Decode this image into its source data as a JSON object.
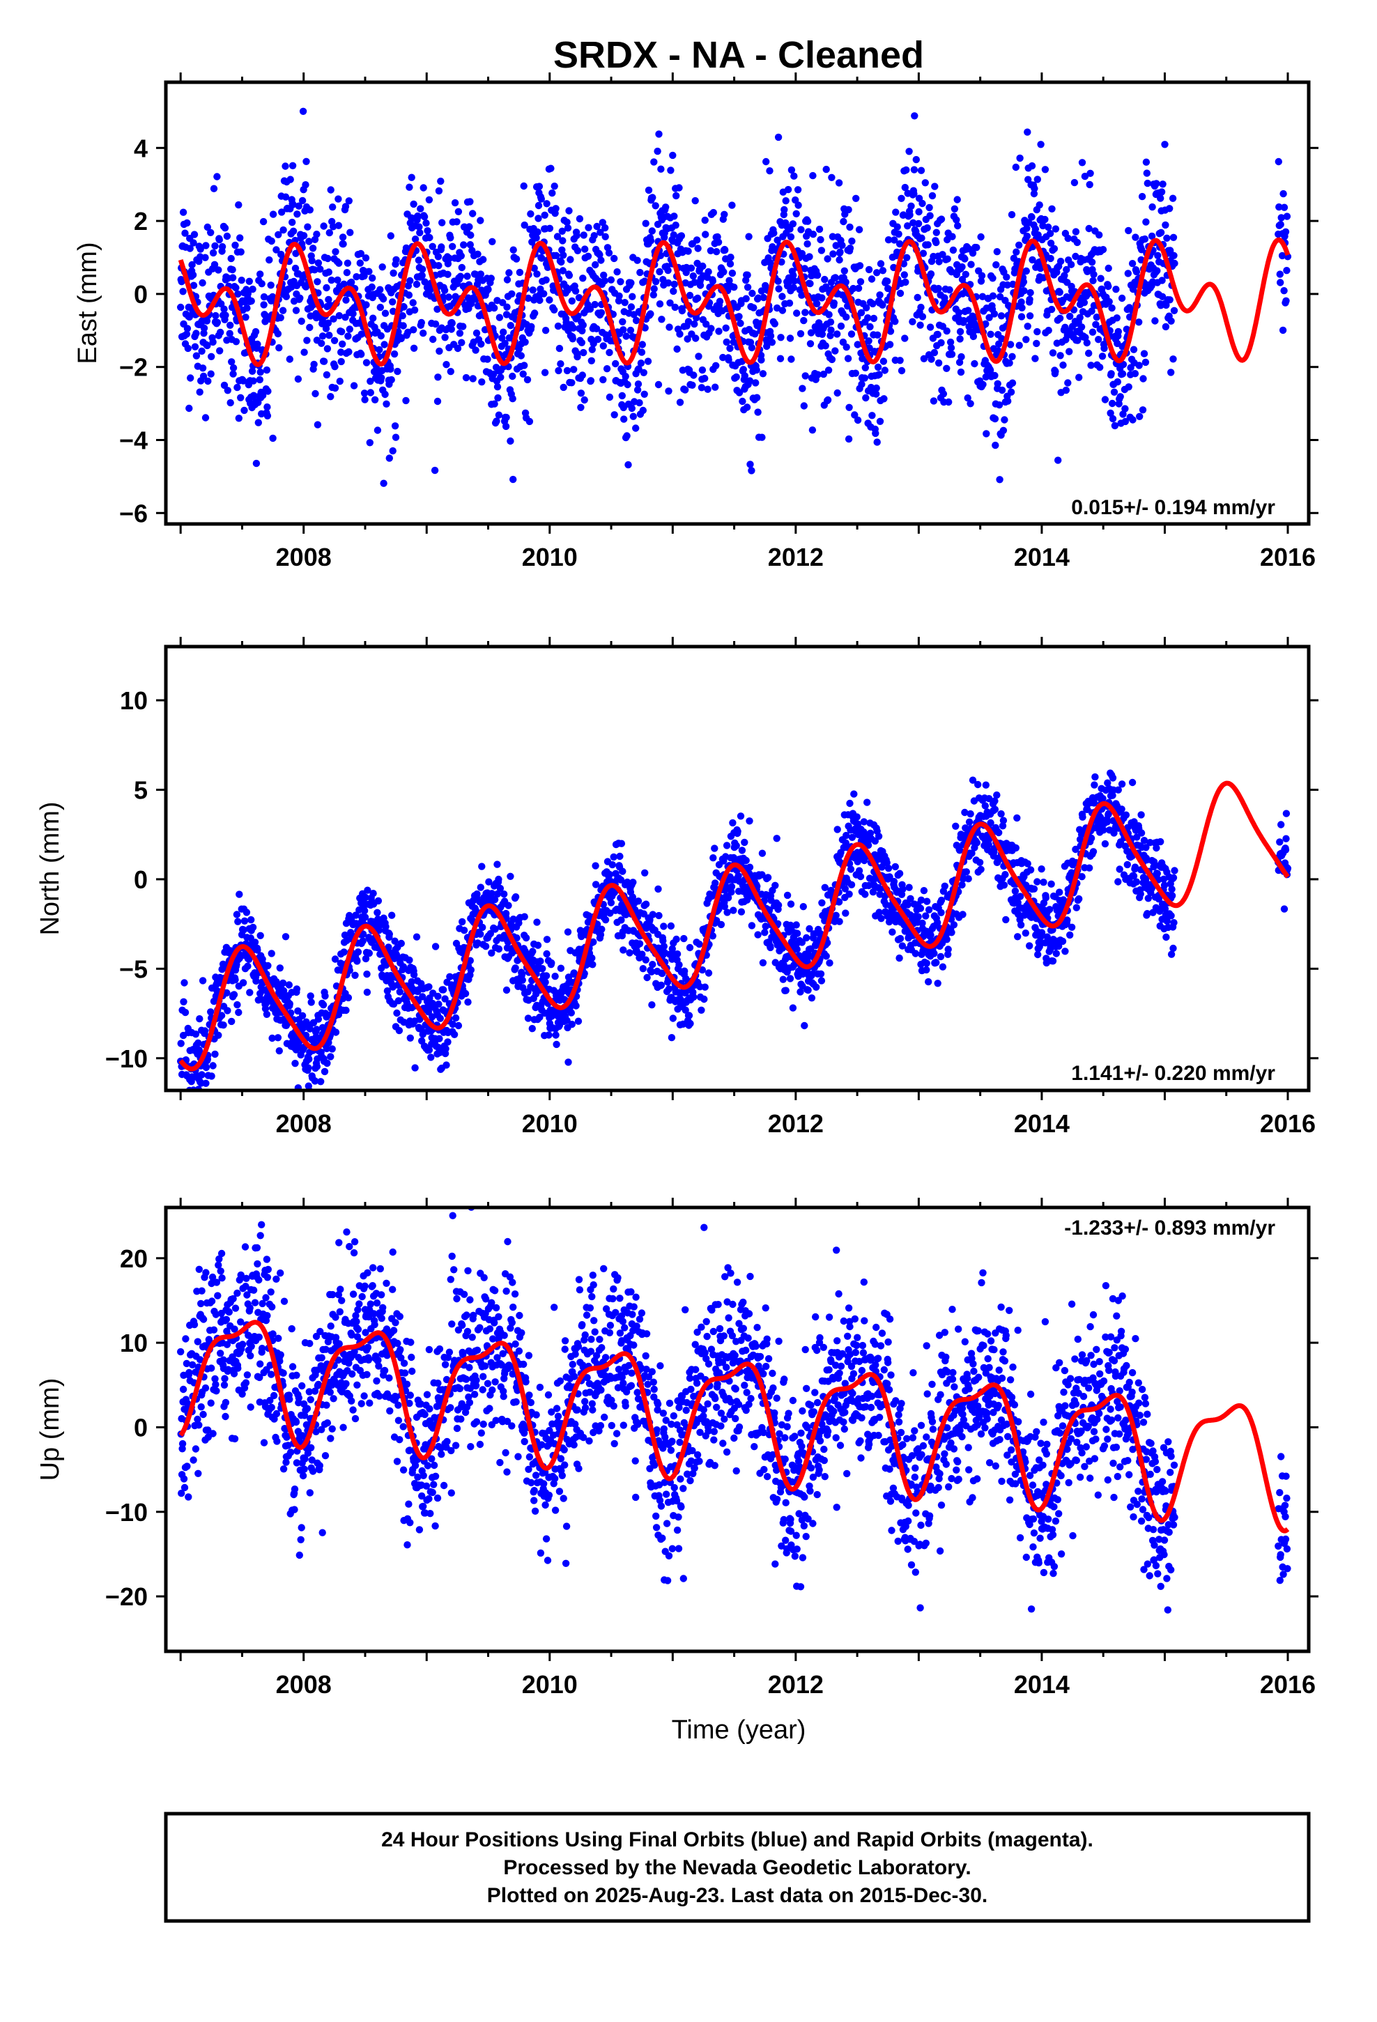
{
  "title": "SRDX  - NA - Cleaned",
  "xlabel": "Time (year)",
  "footer": [
    "24 Hour Positions Using Final Orbits (blue) and Rapid Orbits (magenta).",
    "Processed by the Nevada Geodetic Laboratory.",
    "Plotted on 2025-Aug-23. Last data on 2015-Dec-30."
  ],
  "colors": {
    "final_orbits": "#0000ff",
    "rapid_orbits": "#ff00ff",
    "model": "#ff0000"
  },
  "chart_data": [
    {
      "type": "scatter",
      "ylabel": "East (mm)",
      "rate": "0.015+/- 0.194 mm/yr",
      "xlim": [
        2006.88,
        2016.17
      ],
      "ylim": [
        -6.3,
        5.8
      ],
      "xticks": [
        2008,
        2010,
        2012,
        2014,
        2016
      ],
      "yticks": [
        -6,
        -4,
        -2,
        0,
        2,
        4
      ],
      "model": {
        "offset": -0.2,
        "trend": 0.015,
        "a1": 0.2,
        "b1": 0.9,
        "a2": -0.9,
        "b2": 0.3
      },
      "data_range": [
        2007.0,
        2015.08,
        2015.92,
        2016.0
      ],
      "noise": 1.25
    },
    {
      "type": "scatter",
      "ylabel": "North (mm)",
      "rate": "1.141+/- 0.220 mm/yr",
      "xlim": [
        2006.88,
        2016.17
      ],
      "ylim": [
        -11.8,
        13.0
      ],
      "xticks": [
        2008,
        2010,
        2012,
        2014,
        2016
      ],
      "yticks": [
        -10,
        -5,
        0,
        5,
        10
      ],
      "model": {
        "offset": -2.5,
        "trend": 1.141,
        "a1": -0.8,
        "b1": -2.9,
        "a2": -0.4,
        "b2": 0.4
      },
      "data_range": [
        2007.0,
        2015.08,
        2015.92,
        2016.0
      ],
      "noise": 1.2
    },
    {
      "type": "scatter",
      "ylabel": "Up (mm)",
      "rate": "-1.233+/- 0.893 mm/yr",
      "xlim": [
        2006.88,
        2016.17
      ],
      "ylim": [
        -26.5,
        26.0
      ],
      "xticks": [
        2008,
        2010,
        2012,
        2014,
        2016
      ],
      "yticks": [
        -20,
        -10,
        0,
        10,
        20
      ],
      "model": {
        "offset": 2.0,
        "trend": -1.233,
        "a1": 0.3,
        "b1": -6.5,
        "a2": 1.2,
        "b2": -2.0
      },
      "data_range": [
        2007.0,
        2015.08,
        2015.92,
        2016.0
      ],
      "noise": 5.0
    }
  ]
}
